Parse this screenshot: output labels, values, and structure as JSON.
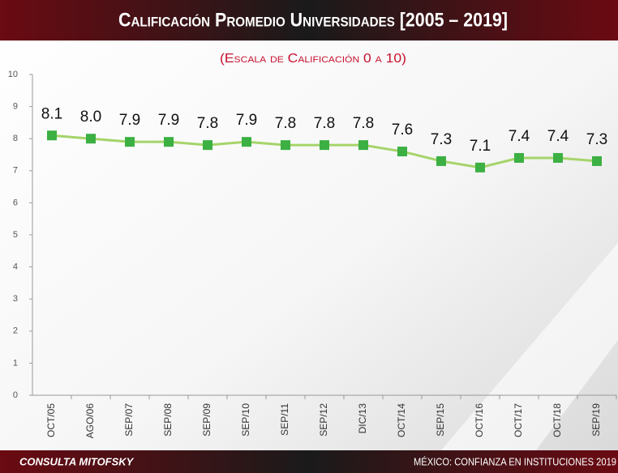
{
  "chart_data": {
    "type": "line",
    "title": "Calificación Promedio Universidades [2005 – 2019]",
    "subtitle": "(Escala de Calificación 0 a 10)",
    "categories": [
      "OCT/05",
      "AGO/06",
      "SEP/07",
      "SEP/08",
      "SEP/09",
      "SEP/10",
      "SEP/11",
      "SEP/12",
      "DIC/13",
      "OCT/14",
      "SEP/15",
      "OCT/16",
      "OCT/17",
      "OCT/18",
      "SEP/19"
    ],
    "values": [
      8.1,
      8.0,
      7.9,
      7.9,
      7.8,
      7.9,
      7.8,
      7.8,
      7.8,
      7.6,
      7.3,
      7.1,
      7.4,
      7.4,
      7.3
    ],
    "value_labels": [
      "8.1",
      "8.0",
      "7.9",
      "7.9",
      "7.8",
      "7.9",
      "7.8",
      "7.8",
      "7.8",
      "7.6",
      "7.3",
      "7.1",
      "7.4",
      "7.4",
      "7.3"
    ],
    "line_color": "#a5d46a",
    "marker_color": "#3cb043",
    "ylim": [
      0,
      10
    ],
    "yticks": [
      0,
      1,
      2,
      3,
      4,
      5,
      6,
      7,
      8,
      9,
      10
    ],
    "footer_left": "CONSULTA MITOFSKY",
    "footer_right": "MÉXICO: CONFIANZA EN INSTITUCIONES 2019"
  }
}
